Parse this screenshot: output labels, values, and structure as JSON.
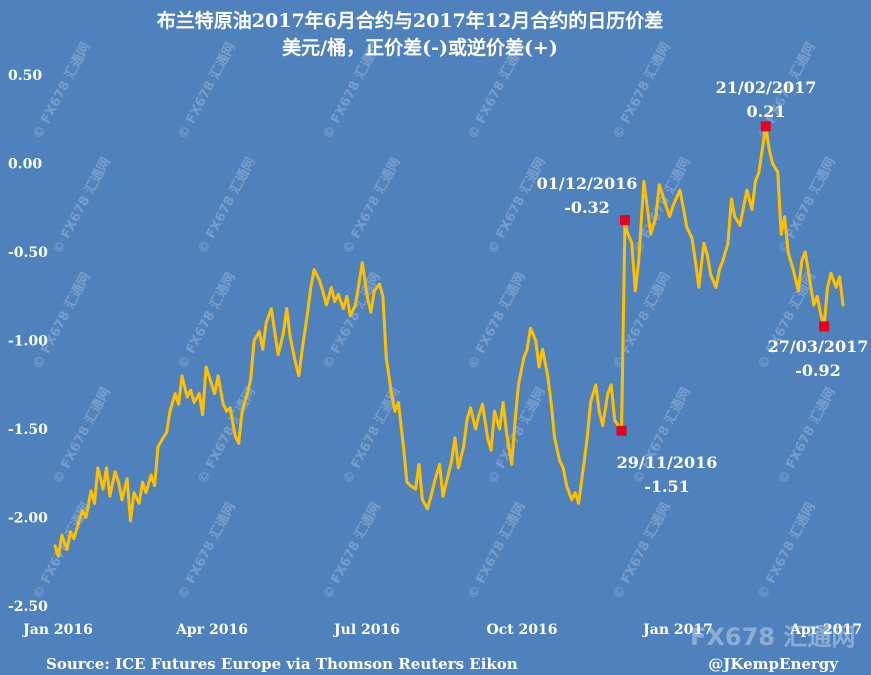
{
  "chart_data": {
    "type": "line",
    "title": "布兰特原油2017年6月合约与2017年12月合约的日历价差",
    "subtitle": "美元/桶，正价差(-)或逆价差(+)",
    "xlabel": "",
    "ylabel": "",
    "ylim": [
      -2.5,
      0.5
    ],
    "y_ticks": [
      "0.50",
      "0.00",
      "-0.50",
      "-1.00",
      "-1.50",
      "-2.00",
      "-2.50"
    ],
    "x_ticks": [
      "Jan 2016",
      "Apr 2016",
      "Jul 2016",
      "Oct 2016",
      "Jan 2017",
      "Apr 2017"
    ],
    "x_range": [
      "2016-01-04",
      "2017-04-07"
    ],
    "grid": false,
    "line_color": "#ffc000",
    "marker_color": "#e8001c",
    "series": [
      {
        "values": [
          [
            "2016-01-04",
            -2.16
          ],
          [
            "2016-01-06",
            -2.22
          ],
          [
            "2016-01-08",
            -2.1
          ],
          [
            "2016-01-11",
            -2.18
          ],
          [
            "2016-01-13",
            -2.08
          ],
          [
            "2016-01-15",
            -2.12
          ],
          [
            "2016-01-18",
            -2.02
          ],
          [
            "2016-01-20",
            -1.96
          ],
          [
            "2016-01-22",
            -2.0
          ],
          [
            "2016-01-25",
            -1.85
          ],
          [
            "2016-01-27",
            -1.92
          ],
          [
            "2016-01-29",
            -1.72
          ],
          [
            "2016-02-01",
            -1.84
          ],
          [
            "2016-02-03",
            -1.72
          ],
          [
            "2016-02-05",
            -1.88
          ],
          [
            "2016-02-08",
            -1.74
          ],
          [
            "2016-02-10",
            -1.8
          ],
          [
            "2016-02-12",
            -1.9
          ],
          [
            "2016-02-15",
            -1.78
          ],
          [
            "2016-02-17",
            -2.02
          ],
          [
            "2016-02-19",
            -1.86
          ],
          [
            "2016-02-22",
            -1.92
          ],
          [
            "2016-02-24",
            -1.8
          ],
          [
            "2016-02-26",
            -1.86
          ],
          [
            "2016-02-29",
            -1.76
          ],
          [
            "2016-03-02",
            -1.82
          ],
          [
            "2016-03-04",
            -1.6
          ],
          [
            "2016-03-07",
            -1.55
          ],
          [
            "2016-03-09",
            -1.52
          ],
          [
            "2016-03-11",
            -1.4
          ],
          [
            "2016-03-14",
            -1.3
          ],
          [
            "2016-03-16",
            -1.36
          ],
          [
            "2016-03-18",
            -1.2
          ],
          [
            "2016-03-21",
            -1.32
          ],
          [
            "2016-03-23",
            -1.28
          ],
          [
            "2016-03-25",
            -1.35
          ],
          [
            "2016-03-28",
            -1.3
          ],
          [
            "2016-03-30",
            -1.42
          ],
          [
            "2016-04-01",
            -1.15
          ],
          [
            "2016-04-04",
            -1.24
          ],
          [
            "2016-04-06",
            -1.3
          ],
          [
            "2016-04-08",
            -1.2
          ],
          [
            "2016-04-11",
            -1.36
          ],
          [
            "2016-04-13",
            -1.4
          ],
          [
            "2016-04-15",
            -1.38
          ],
          [
            "2016-04-18",
            -1.54
          ],
          [
            "2016-04-20",
            -1.58
          ],
          [
            "2016-04-22",
            -1.4
          ],
          [
            "2016-04-25",
            -1.3
          ],
          [
            "2016-04-27",
            -1.22
          ],
          [
            "2016-04-29",
            -1.0
          ],
          [
            "2016-05-02",
            -0.95
          ],
          [
            "2016-05-04",
            -1.05
          ],
          [
            "2016-05-06",
            -0.9
          ],
          [
            "2016-05-09",
            -0.82
          ],
          [
            "2016-05-11",
            -0.95
          ],
          [
            "2016-05-13",
            -1.08
          ],
          [
            "2016-05-16",
            -0.96
          ],
          [
            "2016-05-18",
            -0.82
          ],
          [
            "2016-05-20",
            -0.98
          ],
          [
            "2016-05-23",
            -1.12
          ],
          [
            "2016-05-25",
            -1.2
          ],
          [
            "2016-05-27",
            -1.05
          ],
          [
            "2016-05-30",
            -0.85
          ],
          [
            "2016-06-01",
            -0.7
          ],
          [
            "2016-06-03",
            -0.6
          ],
          [
            "2016-06-06",
            -0.66
          ],
          [
            "2016-06-08",
            -0.72
          ],
          [
            "2016-06-10",
            -0.8
          ],
          [
            "2016-06-13",
            -0.7
          ],
          [
            "2016-06-15",
            -0.78
          ],
          [
            "2016-06-17",
            -0.74
          ],
          [
            "2016-06-20",
            -0.82
          ],
          [
            "2016-06-22",
            -0.75
          ],
          [
            "2016-06-24",
            -0.86
          ],
          [
            "2016-06-27",
            -0.8
          ],
          [
            "2016-06-29",
            -0.68
          ],
          [
            "2016-07-01",
            -0.56
          ],
          [
            "2016-07-04",
            -0.76
          ],
          [
            "2016-07-06",
            -0.84
          ],
          [
            "2016-07-08",
            -0.72
          ],
          [
            "2016-07-11",
            -0.68
          ],
          [
            "2016-07-13",
            -0.75
          ],
          [
            "2016-07-15",
            -1.1
          ],
          [
            "2016-07-18",
            -1.3
          ],
          [
            "2016-07-20",
            -1.4
          ],
          [
            "2016-07-22",
            -1.35
          ],
          [
            "2016-07-25",
            -1.6
          ],
          [
            "2016-07-27",
            -1.8
          ],
          [
            "2016-07-29",
            -1.82
          ],
          [
            "2016-08-01",
            -1.84
          ],
          [
            "2016-08-03",
            -1.7
          ],
          [
            "2016-08-05",
            -1.9
          ],
          [
            "2016-08-08",
            -1.95
          ],
          [
            "2016-08-10",
            -1.88
          ],
          [
            "2016-08-12",
            -1.8
          ],
          [
            "2016-08-15",
            -1.7
          ],
          [
            "2016-08-17",
            -1.88
          ],
          [
            "2016-08-19",
            -1.8
          ],
          [
            "2016-08-22",
            -1.68
          ],
          [
            "2016-08-24",
            -1.55
          ],
          [
            "2016-08-26",
            -1.72
          ],
          [
            "2016-08-29",
            -1.6
          ],
          [
            "2016-08-31",
            -1.45
          ],
          [
            "2016-09-02",
            -1.38
          ],
          [
            "2016-09-05",
            -1.5
          ],
          [
            "2016-09-07",
            -1.42
          ],
          [
            "2016-09-09",
            -1.36
          ],
          [
            "2016-09-12",
            -1.55
          ],
          [
            "2016-09-14",
            -1.62
          ],
          [
            "2016-09-16",
            -1.4
          ],
          [
            "2016-09-19",
            -1.5
          ],
          [
            "2016-09-21",
            -1.35
          ],
          [
            "2016-09-23",
            -1.52
          ],
          [
            "2016-09-26",
            -1.7
          ],
          [
            "2016-09-28",
            -1.45
          ],
          [
            "2016-09-30",
            -1.25
          ],
          [
            "2016-10-03",
            -1.1
          ],
          [
            "2016-10-05",
            -1.05
          ],
          [
            "2016-10-07",
            -0.93
          ],
          [
            "2016-10-10",
            -1.0
          ],
          [
            "2016-10-12",
            -1.15
          ],
          [
            "2016-10-14",
            -1.05
          ],
          [
            "2016-10-17",
            -1.2
          ],
          [
            "2016-10-19",
            -1.35
          ],
          [
            "2016-10-21",
            -1.55
          ],
          [
            "2016-10-24",
            -1.68
          ],
          [
            "2016-10-26",
            -1.72
          ],
          [
            "2016-10-28",
            -1.82
          ],
          [
            "2016-10-31",
            -1.9
          ],
          [
            "2016-11-02",
            -1.86
          ],
          [
            "2016-11-04",
            -1.92
          ],
          [
            "2016-11-07",
            -1.7
          ],
          [
            "2016-11-09",
            -1.55
          ],
          [
            "2016-11-11",
            -1.35
          ],
          [
            "2016-11-14",
            -1.25
          ],
          [
            "2016-11-16",
            -1.4
          ],
          [
            "2016-11-18",
            -1.48
          ],
          [
            "2016-11-21",
            -1.3
          ],
          [
            "2016-11-23",
            -1.25
          ],
          [
            "2016-11-25",
            -1.45
          ],
          [
            "2016-11-29",
            -1.51
          ],
          [
            "2016-12-01",
            -0.32
          ],
          [
            "2016-12-02",
            -0.38
          ],
          [
            "2016-12-05",
            -0.45
          ],
          [
            "2016-12-07",
            -0.72
          ],
          [
            "2016-12-09",
            -0.55
          ],
          [
            "2016-12-12",
            -0.1
          ],
          [
            "2016-12-14",
            -0.25
          ],
          [
            "2016-12-16",
            -0.4
          ],
          [
            "2016-12-19",
            -0.3
          ],
          [
            "2016-12-21",
            -0.12
          ],
          [
            "2016-12-23",
            -0.18
          ],
          [
            "2016-12-27",
            -0.3
          ],
          [
            "2016-12-29",
            -0.24
          ],
          [
            "2017-01-02",
            -0.15
          ],
          [
            "2017-01-04",
            -0.25
          ],
          [
            "2017-01-06",
            -0.36
          ],
          [
            "2017-01-09",
            -0.42
          ],
          [
            "2017-01-11",
            -0.55
          ],
          [
            "2017-01-13",
            -0.7
          ],
          [
            "2017-01-16",
            -0.45
          ],
          [
            "2017-01-18",
            -0.52
          ],
          [
            "2017-01-20",
            -0.63
          ],
          [
            "2017-01-23",
            -0.7
          ],
          [
            "2017-01-25",
            -0.6
          ],
          [
            "2017-01-27",
            -0.55
          ],
          [
            "2017-01-30",
            -0.45
          ],
          [
            "2017-02-01",
            -0.2
          ],
          [
            "2017-02-03",
            -0.3
          ],
          [
            "2017-02-06",
            -0.35
          ],
          [
            "2017-02-08",
            -0.25
          ],
          [
            "2017-02-10",
            -0.15
          ],
          [
            "2017-02-13",
            -0.26
          ],
          [
            "2017-02-15",
            -0.1
          ],
          [
            "2017-02-17",
            -0.05
          ],
          [
            "2017-02-21",
            0.21
          ],
          [
            "2017-02-23",
            0.08
          ],
          [
            "2017-02-25",
            0.0
          ],
          [
            "2017-02-28",
            -0.05
          ],
          [
            "2017-03-02",
            -0.4
          ],
          [
            "2017-03-04",
            -0.3
          ],
          [
            "2017-03-06",
            -0.5
          ],
          [
            "2017-03-09",
            -0.6
          ],
          [
            "2017-03-12",
            -0.72
          ],
          [
            "2017-03-14",
            -0.55
          ],
          [
            "2017-03-16",
            -0.5
          ],
          [
            "2017-03-18",
            -0.62
          ],
          [
            "2017-03-21",
            -0.8
          ],
          [
            "2017-03-23",
            -0.75
          ],
          [
            "2017-03-25",
            -0.85
          ],
          [
            "2017-03-27",
            -0.92
          ],
          [
            "2017-03-29",
            -0.7
          ],
          [
            "2017-03-31",
            -0.62
          ],
          [
            "2017-04-03",
            -0.7
          ],
          [
            "2017-04-05",
            -0.64
          ],
          [
            "2017-04-07",
            -0.8
          ]
        ]
      }
    ],
    "annotations": [
      {
        "date": "2016-11-29",
        "value": -1.51,
        "label_date": "29/11/2016",
        "label_value": "-1.51"
      },
      {
        "date": "2016-12-01",
        "value": -0.32,
        "label_date": "01/12/2016",
        "label_value": "-0.32"
      },
      {
        "date": "2017-02-21",
        "value": 0.21,
        "label_date": "21/02/2017",
        "label_value": "0.21"
      },
      {
        "date": "2017-03-27",
        "value": -0.92,
        "label_date": "27/03/2017",
        "label_value": "-0.92"
      }
    ]
  },
  "footer": {
    "source": "Source: ICE Futures Europe via Thomson Reuters Eikon",
    "credit": "@JKempEnergy"
  },
  "watermark": {
    "text": "© FX678 汇通网",
    "logo": "FX678 汇通网"
  }
}
